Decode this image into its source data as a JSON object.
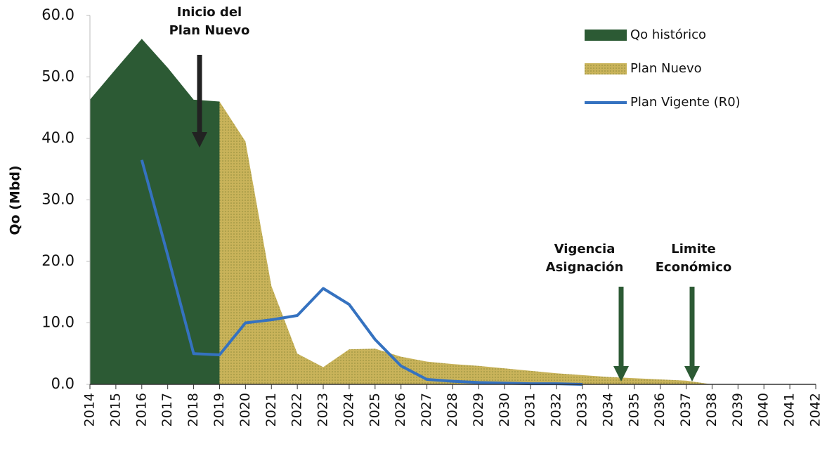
{
  "chart_data": {
    "type": "area",
    "ylabel": "Qo (Mbd)",
    "xlim": [
      2014,
      2042
    ],
    "xticks": [
      2014,
      2015,
      2016,
      2017,
      2018,
      2019,
      2020,
      2021,
      2022,
      2023,
      2024,
      2025,
      2026,
      2027,
      2028,
      2029,
      2030,
      2031,
      2032,
      2033,
      2034,
      2035,
      2036,
      2037,
      2038,
      2039,
      2040,
      2041,
      2042
    ],
    "ylim": [
      0,
      60
    ],
    "yticks": [
      {
        "value": 0,
        "label": "0.0"
      },
      {
        "value": 10,
        "label": "10.0"
      },
      {
        "value": 20,
        "label": "20.0"
      },
      {
        "value": 30,
        "label": "30.0"
      },
      {
        "value": 40,
        "label": "40.0"
      },
      {
        "value": 50,
        "label": "50.0"
      },
      {
        "value": 60,
        "label": "60.0"
      }
    ],
    "series": [
      {
        "name": "Qo histórico",
        "kind": "area",
        "color": "#2c5a34",
        "x": [
          2014,
          2015,
          2016,
          2017,
          2018,
          2019
        ],
        "values": [
          46.3,
          51.3,
          56.2,
          51.5,
          46.3,
          46.0
        ]
      },
      {
        "name": "Plan Nuevo",
        "kind": "area",
        "color": "#c9b35a",
        "x": [
          2019,
          2020,
          2021,
          2022,
          2023,
          2024,
          2025,
          2026,
          2027,
          2028,
          2029,
          2030,
          2031,
          2032,
          2033,
          2034,
          2035,
          2036,
          2037,
          2038
        ],
        "values": [
          46.0,
          39.5,
          16.0,
          5.0,
          2.8,
          5.7,
          5.8,
          4.5,
          3.7,
          3.3,
          3.0,
          2.6,
          2.2,
          1.8,
          1.5,
          1.2,
          1.0,
          0.8,
          0.6,
          0.0
        ]
      },
      {
        "name": "Plan Vigente (R0)",
        "kind": "line",
        "color": "#3572c0",
        "x": [
          2016,
          2017,
          2018,
          2019,
          2020,
          2021,
          2022,
          2023,
          2024,
          2025,
          2026,
          2027,
          2028,
          2029,
          2030,
          2031,
          2032,
          2033
        ],
        "values": [
          36.5,
          21.0,
          5.0,
          4.8,
          10.0,
          10.5,
          11.2,
          15.6,
          13.0,
          7.3,
          3.0,
          0.8,
          0.5,
          0.3,
          0.2,
          0.1,
          0.1,
          0.0
        ]
      }
    ],
    "annotations": [
      {
        "lines": [
          "Inicio del",
          "Plan Nuevo"
        ]
      },
      {
        "lines": [
          "Vigencia",
          "Asignación"
        ]
      },
      {
        "lines": [
          "Limite",
          "Económico"
        ]
      }
    ]
  }
}
